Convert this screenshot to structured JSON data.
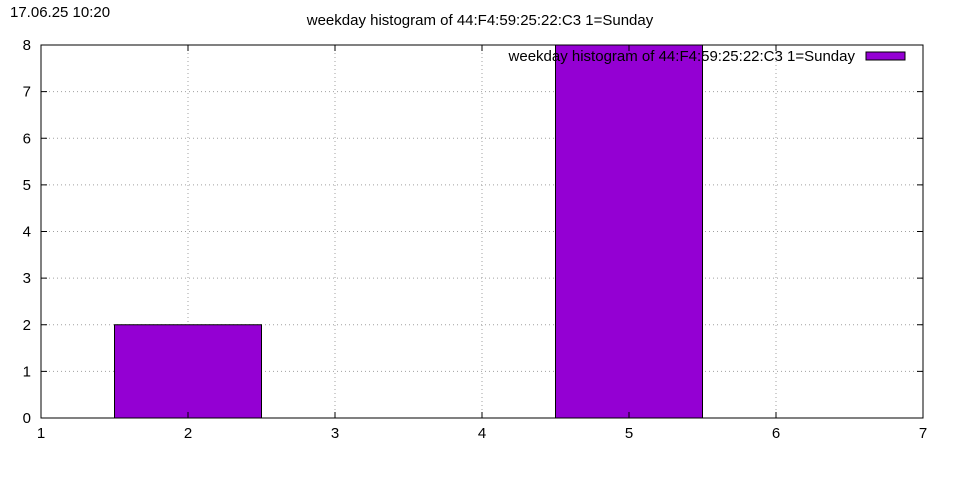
{
  "timestamp": "17.06.25 10:20",
  "chart_data": {
    "type": "bar",
    "title": "weekday histogram of 44:F4:59:25:22:C3 1=Sunday",
    "xlabel": "",
    "ylabel": "",
    "xlim": [
      1,
      7
    ],
    "ylim": [
      0,
      8
    ],
    "xticks": [
      1,
      2,
      3,
      4,
      5,
      6,
      7
    ],
    "yticks": [
      0,
      1,
      2,
      3,
      4,
      5,
      6,
      7,
      8
    ],
    "grid": true,
    "legend_position": "top-right",
    "bar_width": 1,
    "series": [
      {
        "name": "weekday histogram of 44:F4:59:25:22:C3 1=Sunday",
        "color": "#9400d3",
        "x": [
          2,
          5
        ],
        "values": [
          2,
          8
        ]
      }
    ]
  }
}
